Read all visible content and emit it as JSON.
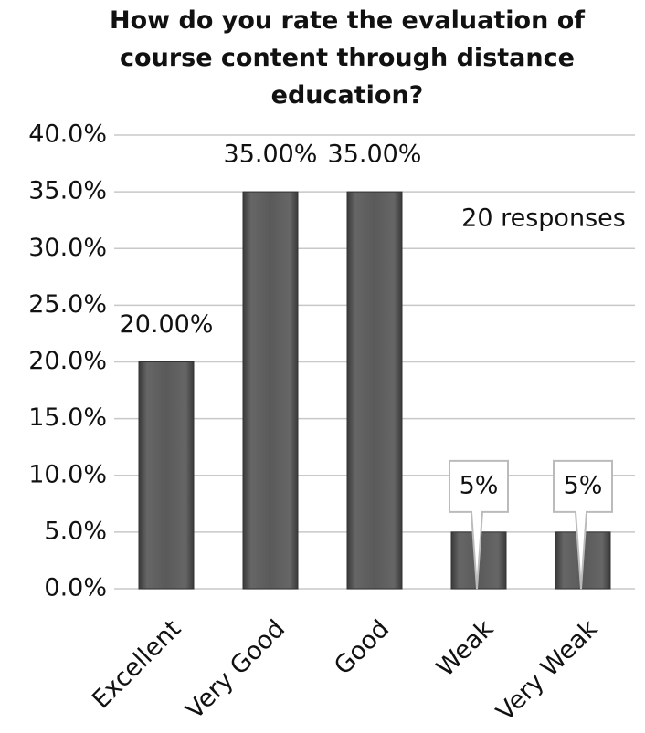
{
  "chart_data": {
    "type": "bar",
    "title": "How do you rate the evaluation of course content through distance education?",
    "annotation": "20 responses",
    "categories": [
      "Excellent",
      "Very Good",
      "Good",
      "Weak",
      "Very Weak"
    ],
    "values": [
      20,
      35,
      35,
      5,
      5
    ],
    "value_labels": [
      "20.00%",
      "35.00%",
      "35.00%",
      "5%",
      "5%"
    ],
    "color": "#555555",
    "ylim": [
      0,
      40
    ],
    "yticks": [
      {
        "value": 0,
        "label": "0.0%"
      },
      {
        "value": 5,
        "label": "5.0%"
      },
      {
        "value": 10,
        "label": "10.0%"
      },
      {
        "value": 15,
        "label": "15.0%"
      },
      {
        "value": 20,
        "label": "20.0%"
      },
      {
        "value": 25,
        "label": "25.0%"
      },
      {
        "value": 30,
        "label": "30.0%"
      },
      {
        "value": 35,
        "label": "35.0%"
      },
      {
        "value": 40,
        "label": "40.0%"
      }
    ],
    "grid": true
  }
}
